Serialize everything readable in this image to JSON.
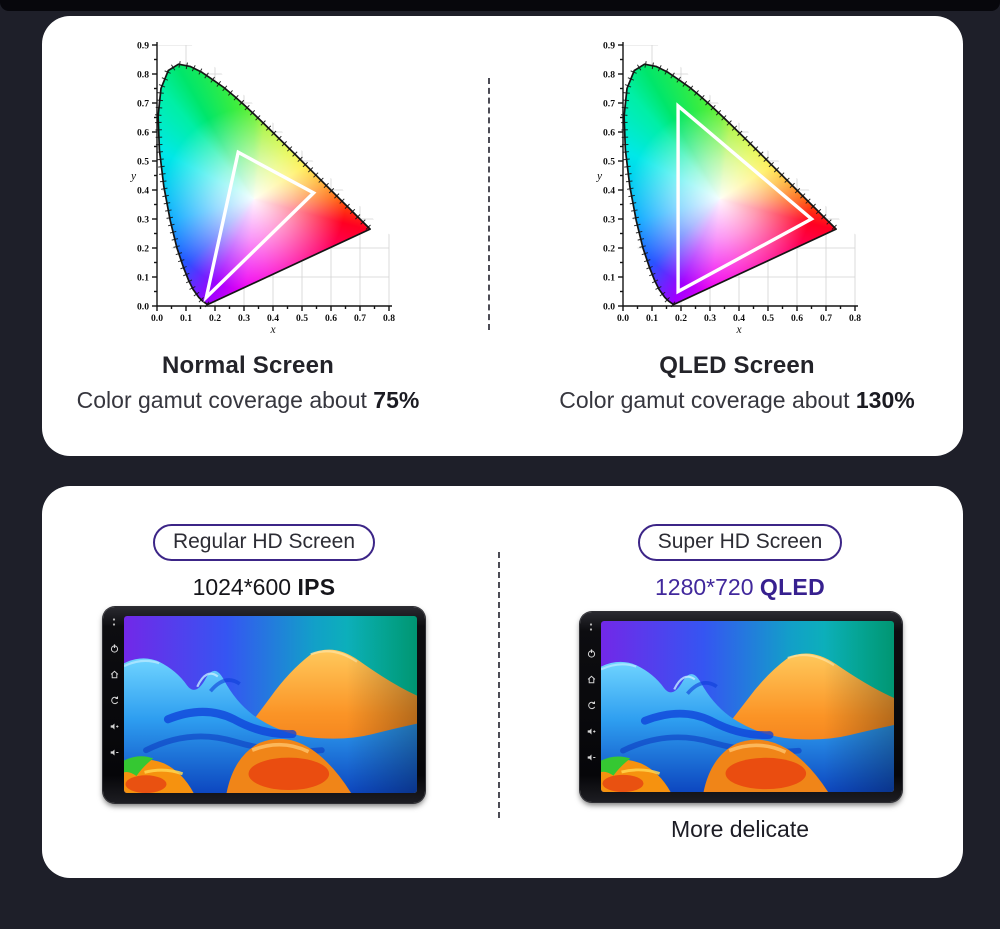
{
  "background_color": "#1e1f29",
  "card_color": "#ffffff",
  "accent_purple": "#3c2587",
  "gamut_section": {
    "left": {
      "title": "Normal Screen",
      "subtitle_prefix": "Color gamut coverage about",
      "coverage": "75%"
    },
    "right": {
      "title": "QLED Screen",
      "subtitle_prefix": "Color gamut coverage about",
      "coverage": "130%"
    }
  },
  "screen_section": {
    "left": {
      "badge": "Regular HD Screen",
      "resolution": "1024*600",
      "panel": "IPS"
    },
    "right": {
      "badge": "Super HD Screen",
      "resolution": "1280*720",
      "panel": "QLED",
      "caption": "More delicate"
    },
    "device_icons": [
      "indicator-dots",
      "power",
      "home",
      "back",
      "volume-up",
      "volume-down"
    ]
  },
  "chart_data": [
    {
      "type": "chromaticity-diagram",
      "title": "Normal Screen",
      "xlabel": "x",
      "ylabel": "y",
      "xlim": [
        0.0,
        0.8
      ],
      "ylim": [
        0.0,
        0.9
      ],
      "tick_step": 0.1,
      "xticks": [
        "0.0",
        "0.1",
        "0.2",
        "0.3",
        "0.4",
        "0.5",
        "0.6",
        "0.7",
        "0.8"
      ],
      "yticks": [
        "0.0",
        "0.1",
        "0.2",
        "0.3",
        "0.4",
        "0.5",
        "0.6",
        "0.7",
        "0.8",
        "0.9"
      ],
      "grid": true,
      "gamut_triangle_xy": [
        [
          0.28,
          0.53
        ],
        [
          0.54,
          0.39
        ],
        [
          0.17,
          0.03
        ]
      ],
      "coverage": "75%"
    },
    {
      "type": "chromaticity-diagram",
      "title": "QLED Screen",
      "xlabel": "x",
      "ylabel": "y",
      "xlim": [
        0.0,
        0.8
      ],
      "ylim": [
        0.0,
        0.9
      ],
      "tick_step": 0.1,
      "xticks": [
        "0.0",
        "0.1",
        "0.2",
        "0.3",
        "0.4",
        "0.5",
        "0.6",
        "0.7",
        "0.8"
      ],
      "yticks": [
        "0.0",
        "0.1",
        "0.2",
        "0.3",
        "0.4",
        "0.5",
        "0.6",
        "0.7",
        "0.8",
        "0.9"
      ],
      "grid": true,
      "gamut_triangle_xy": [
        [
          0.19,
          0.69
        ],
        [
          0.65,
          0.3
        ],
        [
          0.19,
          0.05
        ]
      ],
      "coverage": "130%"
    }
  ]
}
